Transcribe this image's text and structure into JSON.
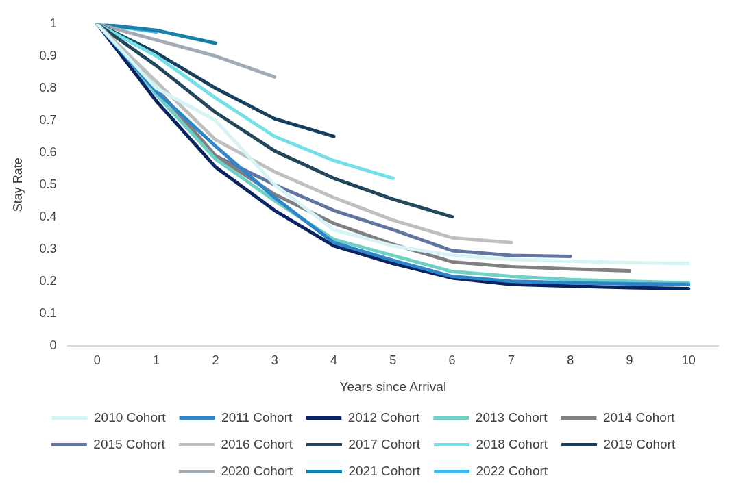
{
  "chart_data": {
    "type": "line",
    "xlabel": "Years since Arrival",
    "ylabel": "Stay Rate",
    "categories": [
      "0",
      "1",
      "2",
      "3",
      "4",
      "5",
      "6",
      "7",
      "8",
      "9",
      "10"
    ],
    "ylim": [
      0,
      1
    ],
    "yticks": [
      0,
      0.1,
      0.2,
      0.3,
      0.4,
      0.5,
      0.6,
      0.7,
      0.8,
      0.9,
      1
    ],
    "grid": false,
    "legend": "bottom",
    "marker": "none",
    "line_style": "solid",
    "series": [
      {
        "name": "2010 Cohort",
        "color": "#d6f3f6",
        "values": [
          1,
          0.8,
          0.7,
          0.5,
          0.36,
          0.31,
          0.28,
          0.268,
          0.262,
          0.258,
          0.255
        ]
      },
      {
        "name": "2011 Cohort",
        "color": "#2e86c9",
        "values": [
          1,
          0.79,
          0.62,
          0.46,
          0.32,
          0.265,
          0.215,
          0.2,
          0.195,
          0.192,
          0.19
        ]
      },
      {
        "name": "2012 Cohort",
        "color": "#0a2463",
        "values": [
          1,
          0.76,
          0.555,
          0.42,
          0.31,
          0.255,
          0.21,
          0.19,
          0.185,
          0.18,
          0.177
        ]
      },
      {
        "name": "2013 Cohort",
        "color": "#6fd0c6",
        "values": [
          1,
          0.78,
          0.58,
          0.45,
          0.33,
          0.28,
          0.23,
          0.215,
          0.205,
          0.2,
          0.195
        ]
      },
      {
        "name": "2014 Cohort",
        "color": "#808080",
        "values": [
          1,
          0.8,
          0.59,
          0.47,
          0.38,
          0.315,
          0.26,
          0.245,
          0.238,
          0.232,
          null
        ]
      },
      {
        "name": "2015 Cohort",
        "color": "#6274a0",
        "values": [
          1,
          0.8,
          0.59,
          0.5,
          0.42,
          0.36,
          0.295,
          0.28,
          0.277,
          null,
          null
        ]
      },
      {
        "name": "2016 Cohort",
        "color": "#bfbfbf",
        "values": [
          1,
          0.82,
          0.64,
          0.54,
          0.46,
          0.39,
          0.335,
          0.32,
          null,
          null,
          null
        ]
      },
      {
        "name": "2017 Cohort",
        "color": "#24465a",
        "values": [
          1,
          0.87,
          0.725,
          0.605,
          0.52,
          0.455,
          0.4,
          null,
          null,
          null,
          null
        ]
      },
      {
        "name": "2018 Cohort",
        "color": "#74dfe6",
        "values": [
          1,
          0.9,
          0.77,
          0.65,
          0.575,
          0.52,
          null,
          null,
          null,
          null,
          null
        ]
      },
      {
        "name": "2019 Cohort",
        "color": "#16405e",
        "values": [
          1,
          0.91,
          0.8,
          0.705,
          0.65,
          null,
          null,
          null,
          null,
          null,
          null
        ]
      },
      {
        "name": "2020 Cohort",
        "color": "#a2abb3",
        "values": [
          1,
          0.95,
          0.9,
          0.835,
          null,
          null,
          null,
          null,
          null,
          null,
          null
        ]
      },
      {
        "name": "2021 Cohort",
        "color": "#1880ab",
        "values": [
          1,
          0.98,
          0.94,
          null,
          null,
          null,
          null,
          null,
          null,
          null,
          null
        ]
      },
      {
        "name": "2022 Cohort",
        "color": "#44b8e6",
        "values": [
          1,
          0.975,
          null,
          null,
          null,
          null,
          null,
          null,
          null,
          null,
          null
        ]
      }
    ]
  }
}
